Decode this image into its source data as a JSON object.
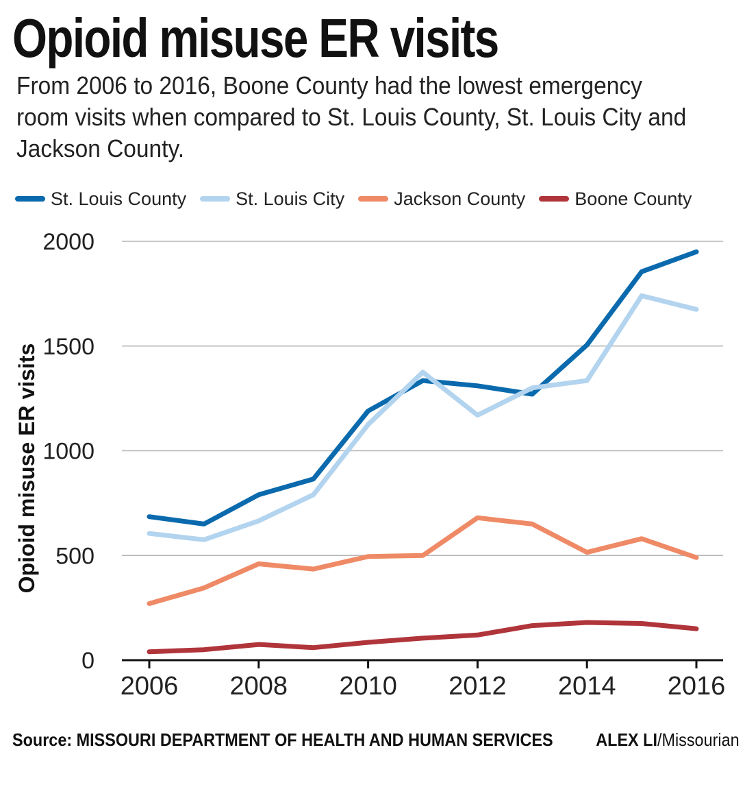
{
  "title": "Opioid misuse ER visits",
  "subtitle": "From 2006 to 2016, Boone County had the lowest emergency room visits when compared to St. Louis County, St. Louis City and Jackson County.",
  "source": "Source: MISSOURI DEPARTMENT OF HEALTH AND HUMAN SERVICES",
  "credit": {
    "name": "ALEX LI",
    "outlet": "/Missourian"
  },
  "chart_data": {
    "type": "line",
    "title": "Opioid misuse ER visits",
    "ylabel": "Opioid misuse ER visits",
    "xlabel": "",
    "x": [
      2006,
      2007,
      2008,
      2009,
      2010,
      2011,
      2012,
      2013,
      2014,
      2015,
      2016
    ],
    "xticks": [
      2006,
      2008,
      2010,
      2012,
      2014,
      2016
    ],
    "xticklabels": [
      "2006",
      "2008",
      "2010",
      "2012",
      "2014",
      "2016"
    ],
    "yticks": [
      0,
      500,
      1000,
      1500,
      2000
    ],
    "yticklabels": [
      "0",
      "500",
      "1000",
      "1500",
      "2000"
    ],
    "ylim": [
      0,
      2000
    ],
    "xlim": [
      2006,
      2016
    ],
    "grid": "horizontal",
    "legend_position": "top",
    "series": [
      {
        "name": "St. Louis County",
        "color": "#0a6aad",
        "values": [
          685,
          650,
          790,
          865,
          1190,
          1335,
          1310,
          1270,
          1505,
          1855,
          1950
        ]
      },
      {
        "name": "St. Louis City",
        "color": "#b3d4ef",
        "values": [
          605,
          575,
          665,
          790,
          1125,
          1375,
          1170,
          1300,
          1335,
          1740,
          1675
        ]
      },
      {
        "name": "Jackson County",
        "color": "#ef8a66",
        "values": [
          270,
          345,
          460,
          435,
          495,
          500,
          680,
          650,
          515,
          580,
          490
        ]
      },
      {
        "name": "Boone County",
        "color": "#b0353b",
        "values": [
          40,
          50,
          75,
          60,
          85,
          105,
          120,
          165,
          180,
          175,
          150
        ]
      }
    ]
  }
}
